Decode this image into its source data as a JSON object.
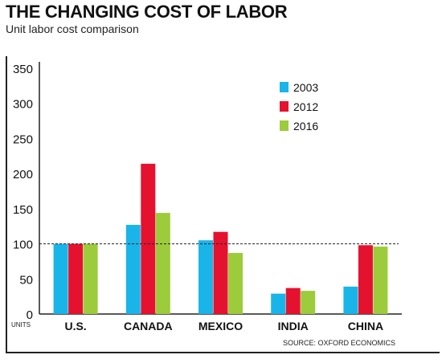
{
  "header": {
    "title": "THE CHANGING COST OF LABOR",
    "subtitle": "Unit labor cost comparison"
  },
  "chart_data": {
    "type": "bar",
    "title": "THE CHANGING COST OF LABOR",
    "subtitle": "Unit labor cost comparison",
    "xlabel": "",
    "ylabel": "UNITS",
    "categories": [
      "U.S.",
      "CANADA",
      "MEXICO",
      "INDIA",
      "CHINA"
    ],
    "series": [
      {
        "name": "2003",
        "color": "#19b5e8",
        "values": [
          100,
          127,
          105,
          29,
          39
        ]
      },
      {
        "name": "2012",
        "color": "#e4122f",
        "values": [
          100,
          214,
          117,
          37,
          98
        ]
      },
      {
        "name": "2016",
        "color": "#9ccb3b",
        "values": [
          100,
          144,
          87,
          33,
          96
        ]
      }
    ],
    "ylim": [
      0,
      350
    ],
    "yticks": [
      0,
      50,
      100,
      150,
      200,
      250,
      300,
      350
    ],
    "reference_line": {
      "value": 100,
      "style": "dashed"
    },
    "grid": false,
    "legend": "top-right",
    "source": "SOURCE: OXFORD ECONOMICS"
  }
}
